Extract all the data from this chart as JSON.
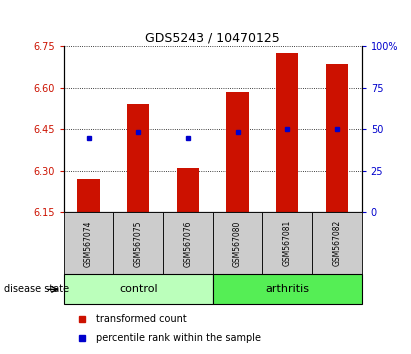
{
  "title": "GDS5243 / 10470125",
  "samples": [
    "GSM567074",
    "GSM567075",
    "GSM567076",
    "GSM567080",
    "GSM567081",
    "GSM567082"
  ],
  "bar_values": [
    6.27,
    6.54,
    6.31,
    6.585,
    6.725,
    6.685
  ],
  "dot_values": [
    6.42,
    6.44,
    6.42,
    6.44,
    6.45,
    6.45
  ],
  "ymin": 6.15,
  "ymax": 6.75,
  "yticks_left": [
    6.15,
    6.3,
    6.45,
    6.6,
    6.75
  ],
  "yticks_right_vals": [
    0,
    25,
    50,
    75,
    100
  ],
  "bar_color": "#cc1100",
  "dot_color": "#0000cc",
  "bar_width": 0.45,
  "group_colors": {
    "control": "#bbffbb",
    "arthritis": "#55ee55"
  },
  "group_label": "disease state",
  "legend_bar_label": "transformed count",
  "legend_dot_label": "percentile rank within the sample",
  "groups_info": [
    [
      "control",
      0,
      2
    ],
    [
      "arthritis",
      3,
      5
    ]
  ],
  "sample_box_color": "#cccccc",
  "plot_bg": "#ffffff"
}
